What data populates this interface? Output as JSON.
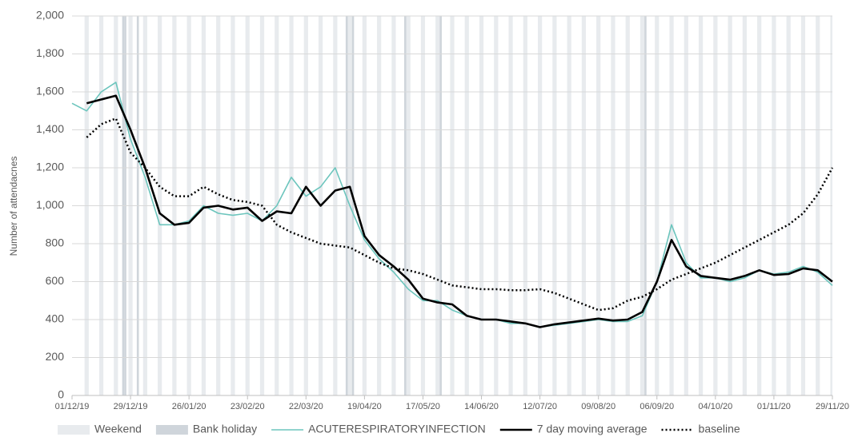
{
  "chart_data": {
    "type": "line",
    "y_label": "Number of attendacnes",
    "xlim": [
      "01/12/19",
      "29/11/20"
    ],
    "xticks": [
      "01/12/19",
      "29/12/19",
      "26/01/20",
      "23/02/20",
      "22/03/20",
      "19/04/20",
      "17/05/20",
      "14/06/20",
      "12/07/20",
      "09/08/20",
      "06/09/20",
      "04/10/20",
      "01/11/20",
      "29/11/20"
    ],
    "ylim": [
      0,
      2000
    ],
    "yticks": [
      0,
      200,
      400,
      600,
      800,
      {
        "value": 1000,
        "label": "1,000"
      },
      {
        "value": 1200,
        "label": "1,200"
      },
      {
        "value": 1400,
        "label": "1,400"
      },
      {
        "value": 1600,
        "label": "1,600"
      },
      {
        "value": 1800,
        "label": "1,800"
      },
      {
        "value": 2000,
        "label": "2,000"
      }
    ],
    "grid": true,
    "x": [
      "01/12/19",
      "08/12/19",
      "15/12/19",
      "22/12/19",
      "29/12/19",
      "05/01/20",
      "12/01/20",
      "19/01/20",
      "26/01/20",
      "02/02/20",
      "09/02/20",
      "16/02/20",
      "23/02/20",
      "01/03/20",
      "08/03/20",
      "15/03/20",
      "22/03/20",
      "29/03/20",
      "05/04/20",
      "12/04/20",
      "19/04/20",
      "26/04/20",
      "03/05/20",
      "10/05/20",
      "17/05/20",
      "24/05/20",
      "31/05/20",
      "07/06/20",
      "14/06/20",
      "21/06/20",
      "28/06/20",
      "05/07/20",
      "12/07/20",
      "19/07/20",
      "26/07/20",
      "02/08/20",
      "09/08/20",
      "16/08/20",
      "23/08/20",
      "30/08/20",
      "06/09/20",
      "13/09/20",
      "20/09/20",
      "27/09/20",
      "04/10/20",
      "11/10/20",
      "18/10/20",
      "25/10/20",
      "01/11/20",
      "08/11/20",
      "15/11/20",
      "22/11/20",
      "29/11/20"
    ],
    "bands": [
      {
        "name": "Weekend",
        "color": "#e8ebee",
        "dates": [
          "07/12/19",
          "14/12/19",
          "21/12/19",
          "28/12/19",
          "04/01/20",
          "11/01/20",
          "18/01/20",
          "25/01/20",
          "01/02/20",
          "08/02/20",
          "15/02/20",
          "22/02/20",
          "29/02/20",
          "07/03/20",
          "14/03/20",
          "21/03/20",
          "28/03/20",
          "04/04/20",
          "11/04/20",
          "18/04/20",
          "25/04/20",
          "02/05/20",
          "09/05/20",
          "16/05/20",
          "23/05/20",
          "30/05/20",
          "06/06/20",
          "13/06/20",
          "20/06/20",
          "27/06/20",
          "04/07/20",
          "11/07/20",
          "18/07/20",
          "25/07/20",
          "01/08/20",
          "08/08/20",
          "15/08/20",
          "22/08/20",
          "29/08/20",
          "05/09/20",
          "12/09/20",
          "19/09/20",
          "26/09/20",
          "03/10/20",
          "10/10/20",
          "17/10/20",
          "24/10/20",
          "31/10/20",
          "07/11/20",
          "14/11/20",
          "21/11/20",
          "28/11/20"
        ]
      },
      {
        "name": "Bank holiday",
        "color": "#cfd5db",
        "dates": [
          "25/12/19",
          "26/12/19",
          "01/01/20",
          "10/04/20",
          "13/04/20",
          "08/05/20",
          "25/05/20",
          "31/08/20"
        ]
      }
    ],
    "series": [
      {
        "name": "ACUTERESPIRATORYINFECTION",
        "color": "#6cc5bd",
        "style": "solid",
        "values": [
          1540,
          1500,
          1600,
          1650,
          1350,
          1150,
          900,
          900,
          920,
          1000,
          960,
          950,
          960,
          920,
          1000,
          1150,
          1050,
          1100,
          1200,
          1000,
          820,
          720,
          650,
          560,
          500,
          500,
          450,
          420,
          400,
          400,
          380,
          380,
          360,
          370,
          380,
          390,
          400,
          390,
          390,
          420,
          600,
          900,
          700,
          620,
          620,
          600,
          620,
          660,
          640,
          650,
          680,
          650,
          580
        ]
      },
      {
        "name": "7 day moving average",
        "color": "#000000",
        "style": "solid",
        "values": [
          null,
          1540,
          1560,
          1580,
          1400,
          1200,
          960,
          900,
          910,
          990,
          1000,
          980,
          990,
          920,
          970,
          960,
          1100,
          1000,
          1080,
          1100,
          840,
          740,
          680,
          610,
          510,
          490,
          480,
          420,
          400,
          400,
          390,
          380,
          360,
          375,
          385,
          395,
          405,
          395,
          400,
          440,
          600,
          820,
          680,
          630,
          620,
          610,
          630,
          660,
          635,
          640,
          670,
          660,
          600
        ]
      },
      {
        "name": "baseline",
        "color": "#000000",
        "style": "dotted",
        "values": [
          null,
          1360,
          1430,
          1460,
          1280,
          1200,
          1100,
          1050,
          1050,
          1100,
          1060,
          1030,
          1020,
          1000,
          900,
          860,
          830,
          800,
          790,
          780,
          740,
          700,
          670,
          660,
          640,
          610,
          580,
          570,
          560,
          560,
          555,
          555,
          560,
          540,
          510,
          480,
          450,
          460,
          500,
          520,
          560,
          610,
          640,
          670,
          700,
          740,
          780,
          820,
          860,
          900,
          960,
          1060,
          1200
        ]
      }
    ]
  }
}
